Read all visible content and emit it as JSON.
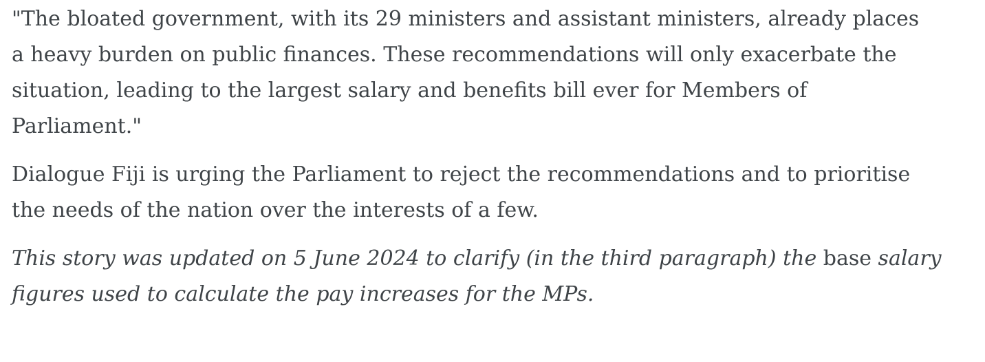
{
  "page": {
    "background_color": "#ffffff",
    "text_color": "#3f4448"
  },
  "article": {
    "quote_paragraph": {
      "lines": [
        "\"The bloated government, with its 29 ministers and assistant ministers, already places",
        "a heavy burden on public finances. These recommendations will only exacerbate the",
        "situation, leading to the largest salary and benefits bill ever for Members of",
        "Parliament.\""
      ]
    },
    "body_paragraph": {
      "lines": [
        "Dialogue Fiji is urging the Parliament to reject the recommendations and to prioritise",
        "the needs of the nation over the interests of a few."
      ]
    },
    "editor_note": {
      "line1_italic_a": "This story was updated on 5 June 2024 to clarify (in the third paragraph) the ",
      "line1_upright": "base",
      "line1_italic_b": " salary",
      "line2_italic": "figures used to calculate the pay increases for the MPs."
    }
  }
}
